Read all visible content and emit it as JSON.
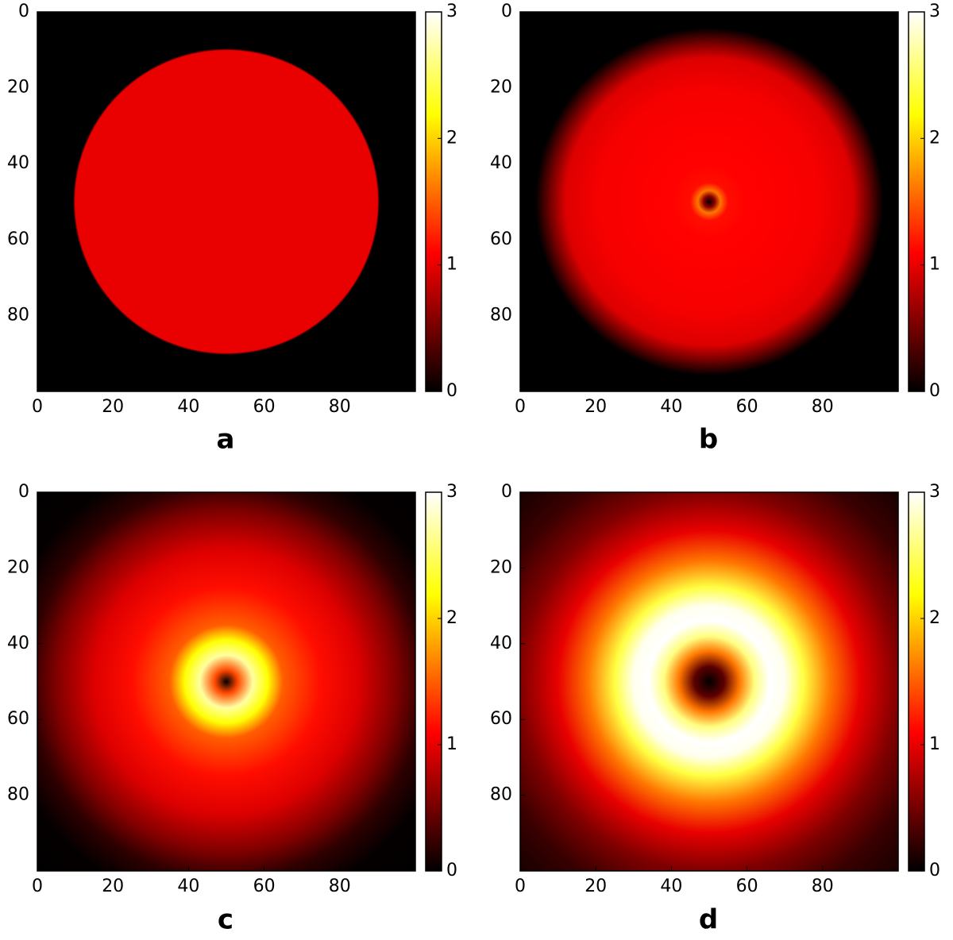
{
  "chart_data": [
    {
      "type": "heatmap",
      "title": "a",
      "colormap": "hot",
      "center": [
        50,
        50
      ],
      "radius": [
        0,
        40,
        40.5,
        72
      ],
      "values": [
        1,
        1,
        0,
        0
      ],
      "xlim": [
        0,
        100
      ],
      "ylim": [
        100,
        0
      ],
      "xticks": [
        0,
        20,
        40,
        60,
        80
      ],
      "yticks": [
        0,
        20,
        40,
        60,
        80
      ],
      "clim": [
        0,
        3
      ],
      "cticks": [
        0,
        1,
        2,
        3
      ]
    },
    {
      "type": "heatmap",
      "title": "b",
      "colormap": "hot",
      "center": [
        50,
        50
      ],
      "radius": [
        0,
        1.5,
        3,
        5,
        10,
        20,
        30,
        38,
        42,
        46,
        72
      ],
      "values": [
        0,
        0.6,
        1.6,
        1.15,
        1.1,
        1.08,
        1.05,
        0.95,
        0.5,
        0,
        0
      ],
      "xlim": [
        0,
        100
      ],
      "ylim": [
        100,
        0
      ],
      "xticks": [
        0,
        20,
        40,
        60,
        80
      ],
      "yticks": [
        0,
        20,
        40,
        60,
        80
      ],
      "clim": [
        0,
        3
      ],
      "cticks": [
        0,
        1,
        2,
        3
      ]
    },
    {
      "type": "heatmap",
      "title": "c",
      "colormap": "hot",
      "center": [
        50,
        50
      ],
      "radius": [
        0,
        3,
        7,
        11,
        15,
        25,
        35,
        45,
        52,
        60,
        72
      ],
      "values": [
        0,
        1.4,
        2.7,
        2.2,
        1.5,
        1.15,
        0.95,
        0.55,
        0.2,
        0.02,
        0
      ],
      "xlim": [
        0,
        100
      ],
      "ylim": [
        100,
        0
      ],
      "xticks": [
        0,
        20,
        40,
        60,
        80
      ],
      "yticks": [
        0,
        20,
        40,
        60,
        80
      ],
      "clim": [
        0,
        3
      ],
      "cticks": [
        0,
        1,
        2,
        3
      ]
    },
    {
      "type": "heatmap",
      "title": "d",
      "colormap": "hot",
      "center": [
        50,
        50
      ],
      "radius": [
        0,
        4,
        8,
        12,
        16,
        20,
        25,
        32,
        40,
        50,
        60,
        72
      ],
      "values": [
        0,
        0.4,
        1.6,
        2.6,
        3,
        2.95,
        2.4,
        1.6,
        1.0,
        0.55,
        0.25,
        0.08
      ],
      "xlim": [
        0,
        100
      ],
      "ylim": [
        100,
        0
      ],
      "xticks": [
        0,
        20,
        40,
        60,
        80
      ],
      "yticks": [
        0,
        20,
        40,
        60,
        80
      ],
      "clim": [
        0,
        3
      ],
      "cticks": [
        0,
        1,
        2,
        3
      ]
    }
  ]
}
